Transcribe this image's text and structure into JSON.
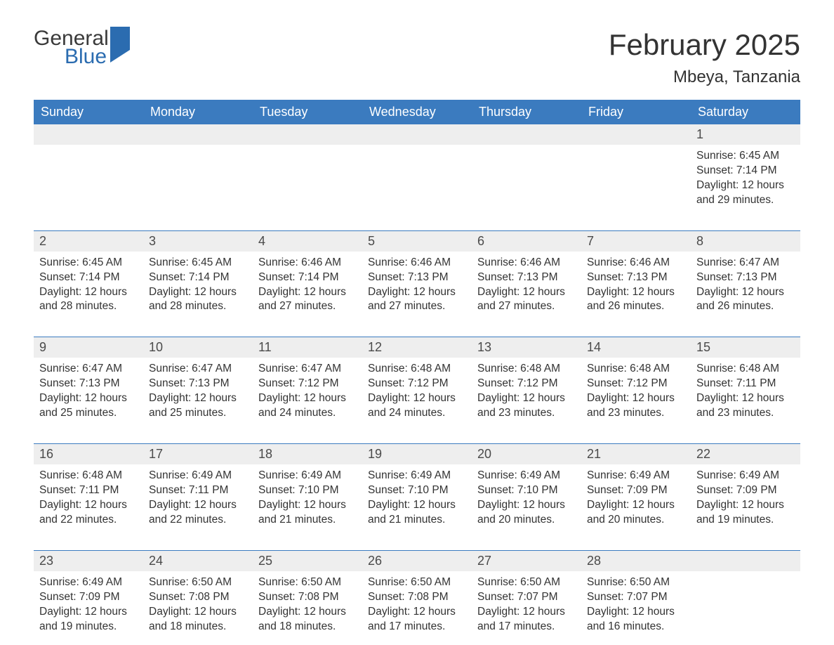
{
  "logo": {
    "line1": "General",
    "line2": "Blue"
  },
  "title": "February 2025",
  "location": "Mbeya, Tanzania",
  "colors": {
    "header_bg": "#3b7bbf",
    "header_text": "#ffffff",
    "daynum_bg": "#eeeeee",
    "body_text": "#333333",
    "rule": "#3b7bbf",
    "logo_blue": "#2b6cb0"
  },
  "layout": {
    "columns": 7,
    "rows": 5,
    "cell_font_size": 15.5,
    "title_font_size": 42,
    "location_font_size": 24
  },
  "weekdays": [
    "Sunday",
    "Monday",
    "Tuesday",
    "Wednesday",
    "Thursday",
    "Friday",
    "Saturday"
  ],
  "weeks": [
    [
      null,
      null,
      null,
      null,
      null,
      null,
      {
        "n": "1",
        "sunrise": "Sunrise: 6:45 AM",
        "sunset": "Sunset: 7:14 PM",
        "daylight": "Daylight: 12 hours and 29 minutes."
      }
    ],
    [
      {
        "n": "2",
        "sunrise": "Sunrise: 6:45 AM",
        "sunset": "Sunset: 7:14 PM",
        "daylight": "Daylight: 12 hours and 28 minutes."
      },
      {
        "n": "3",
        "sunrise": "Sunrise: 6:45 AM",
        "sunset": "Sunset: 7:14 PM",
        "daylight": "Daylight: 12 hours and 28 minutes."
      },
      {
        "n": "4",
        "sunrise": "Sunrise: 6:46 AM",
        "sunset": "Sunset: 7:14 PM",
        "daylight": "Daylight: 12 hours and 27 minutes."
      },
      {
        "n": "5",
        "sunrise": "Sunrise: 6:46 AM",
        "sunset": "Sunset: 7:13 PM",
        "daylight": "Daylight: 12 hours and 27 minutes."
      },
      {
        "n": "6",
        "sunrise": "Sunrise: 6:46 AM",
        "sunset": "Sunset: 7:13 PM",
        "daylight": "Daylight: 12 hours and 27 minutes."
      },
      {
        "n": "7",
        "sunrise": "Sunrise: 6:46 AM",
        "sunset": "Sunset: 7:13 PM",
        "daylight": "Daylight: 12 hours and 26 minutes."
      },
      {
        "n": "8",
        "sunrise": "Sunrise: 6:47 AM",
        "sunset": "Sunset: 7:13 PM",
        "daylight": "Daylight: 12 hours and 26 minutes."
      }
    ],
    [
      {
        "n": "9",
        "sunrise": "Sunrise: 6:47 AM",
        "sunset": "Sunset: 7:13 PM",
        "daylight": "Daylight: 12 hours and 25 minutes."
      },
      {
        "n": "10",
        "sunrise": "Sunrise: 6:47 AM",
        "sunset": "Sunset: 7:13 PM",
        "daylight": "Daylight: 12 hours and 25 minutes."
      },
      {
        "n": "11",
        "sunrise": "Sunrise: 6:47 AM",
        "sunset": "Sunset: 7:12 PM",
        "daylight": "Daylight: 12 hours and 24 minutes."
      },
      {
        "n": "12",
        "sunrise": "Sunrise: 6:48 AM",
        "sunset": "Sunset: 7:12 PM",
        "daylight": "Daylight: 12 hours and 24 minutes."
      },
      {
        "n": "13",
        "sunrise": "Sunrise: 6:48 AM",
        "sunset": "Sunset: 7:12 PM",
        "daylight": "Daylight: 12 hours and 23 minutes."
      },
      {
        "n": "14",
        "sunrise": "Sunrise: 6:48 AM",
        "sunset": "Sunset: 7:12 PM",
        "daylight": "Daylight: 12 hours and 23 minutes."
      },
      {
        "n": "15",
        "sunrise": "Sunrise: 6:48 AM",
        "sunset": "Sunset: 7:11 PM",
        "daylight": "Daylight: 12 hours and 23 minutes."
      }
    ],
    [
      {
        "n": "16",
        "sunrise": "Sunrise: 6:48 AM",
        "sunset": "Sunset: 7:11 PM",
        "daylight": "Daylight: 12 hours and 22 minutes."
      },
      {
        "n": "17",
        "sunrise": "Sunrise: 6:49 AM",
        "sunset": "Sunset: 7:11 PM",
        "daylight": "Daylight: 12 hours and 22 minutes."
      },
      {
        "n": "18",
        "sunrise": "Sunrise: 6:49 AM",
        "sunset": "Sunset: 7:10 PM",
        "daylight": "Daylight: 12 hours and 21 minutes."
      },
      {
        "n": "19",
        "sunrise": "Sunrise: 6:49 AM",
        "sunset": "Sunset: 7:10 PM",
        "daylight": "Daylight: 12 hours and 21 minutes."
      },
      {
        "n": "20",
        "sunrise": "Sunrise: 6:49 AM",
        "sunset": "Sunset: 7:10 PM",
        "daylight": "Daylight: 12 hours and 20 minutes."
      },
      {
        "n": "21",
        "sunrise": "Sunrise: 6:49 AM",
        "sunset": "Sunset: 7:09 PM",
        "daylight": "Daylight: 12 hours and 20 minutes."
      },
      {
        "n": "22",
        "sunrise": "Sunrise: 6:49 AM",
        "sunset": "Sunset: 7:09 PM",
        "daylight": "Daylight: 12 hours and 19 minutes."
      }
    ],
    [
      {
        "n": "23",
        "sunrise": "Sunrise: 6:49 AM",
        "sunset": "Sunset: 7:09 PM",
        "daylight": "Daylight: 12 hours and 19 minutes."
      },
      {
        "n": "24",
        "sunrise": "Sunrise: 6:50 AM",
        "sunset": "Sunset: 7:08 PM",
        "daylight": "Daylight: 12 hours and 18 minutes."
      },
      {
        "n": "25",
        "sunrise": "Sunrise: 6:50 AM",
        "sunset": "Sunset: 7:08 PM",
        "daylight": "Daylight: 12 hours and 18 minutes."
      },
      {
        "n": "26",
        "sunrise": "Sunrise: 6:50 AM",
        "sunset": "Sunset: 7:08 PM",
        "daylight": "Daylight: 12 hours and 17 minutes."
      },
      {
        "n": "27",
        "sunrise": "Sunrise: 6:50 AM",
        "sunset": "Sunset: 7:07 PM",
        "daylight": "Daylight: 12 hours and 17 minutes."
      },
      {
        "n": "28",
        "sunrise": "Sunrise: 6:50 AM",
        "sunset": "Sunset: 7:07 PM",
        "daylight": "Daylight: 12 hours and 16 minutes."
      },
      null
    ]
  ]
}
